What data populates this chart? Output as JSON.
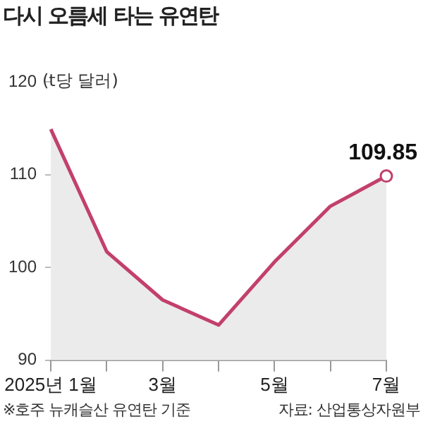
{
  "chart_data": {
    "type": "area",
    "title": "다시 오름세 타는 유연탄",
    "ylabel": "(t당 달러)",
    "categories": [
      "2025년 1월",
      null,
      "3월",
      null,
      "5월",
      null,
      "7월"
    ],
    "series": [
      {
        "color": "#c2406c",
        "values": [
          114.9,
          101.7,
          96.5,
          93.8,
          100.6,
          106.6,
          109.85
        ],
        "value_labels": [
          null,
          null,
          null,
          null,
          null,
          null,
          "109.85"
        ]
      }
    ],
    "ylim": [
      90,
      120
    ],
    "yticks": [
      90,
      100,
      110,
      120
    ],
    "grid": false,
    "legend": false,
    "annotations": [
      "※호주 뉴캐슬산 유연탄 기준",
      "자료: 산업통상자원부"
    ]
  }
}
